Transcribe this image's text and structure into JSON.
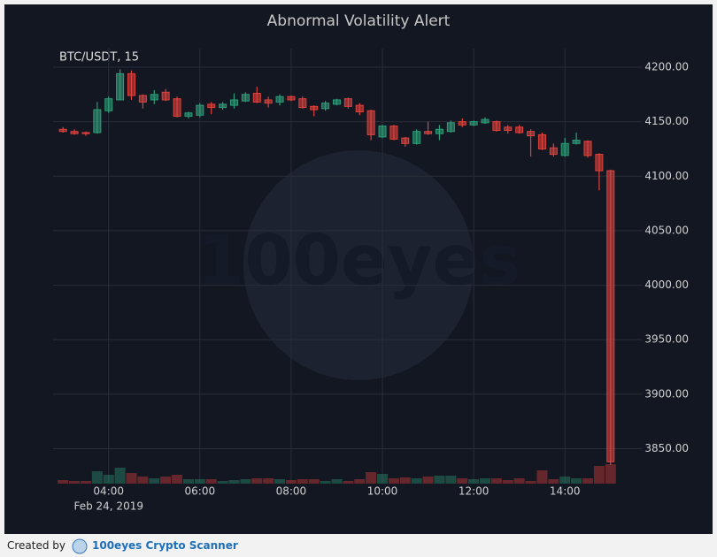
{
  "chart_data": {
    "type": "candlestick",
    "title": "Abnormal Volatility Alert",
    "symbol_label": "BTC/USDT, 15",
    "date_label": "Feb 24, 2019",
    "watermark": "100eyes",
    "x": [
      "03:00",
      "03:15",
      "03:30",
      "03:45",
      "04:00",
      "04:15",
      "04:30",
      "04:45",
      "05:00",
      "05:15",
      "05:30",
      "05:45",
      "06:00",
      "06:15",
      "06:30",
      "06:45",
      "07:00",
      "07:15",
      "07:30",
      "07:45",
      "08:00",
      "08:15",
      "08:30",
      "08:45",
      "09:00",
      "09:15",
      "09:30",
      "09:45",
      "10:00",
      "10:15",
      "10:30",
      "10:45",
      "11:00",
      "11:15",
      "11:30",
      "11:45",
      "12:00",
      "12:15",
      "12:30",
      "12:45",
      "13:00",
      "13:15",
      "13:30",
      "13:45",
      "14:00",
      "14:15",
      "14:30",
      "14:45",
      "15:00"
    ],
    "open": [
      4143,
      4141,
      4140,
      4140,
      4160,
      4170,
      4194,
      4174,
      4170,
      4177,
      4171,
      4155,
      4156,
      4166,
      4163,
      4165,
      4169,
      4176,
      4170,
      4168,
      4173,
      4171,
      4164,
      4162,
      4166,
      4171,
      4165,
      4160,
      4136,
      4146,
      4135,
      4130,
      4141,
      4139,
      4141,
      4150,
      4147,
      4149,
      4150,
      4145,
      4145,
      4141,
      4138,
      4126,
      4119,
      4130,
      4132,
      4120,
      4105
    ],
    "high": [
      4145,
      4143,
      4141,
      4168,
      4173,
      4198,
      4197,
      4175,
      4179,
      4180,
      4173,
      4159,
      4167,
      4168,
      4168,
      4176,
      4177,
      4182,
      4173,
      4175,
      4174,
      4173,
      4165,
      4169,
      4171,
      4172,
      4167,
      4161,
      4147,
      4147,
      4136,
      4143,
      4150,
      4147,
      4151,
      4153,
      4151,
      4154,
      4151,
      4147,
      4147,
      4143,
      4140,
      4130,
      4135,
      4140,
      4133,
      4121,
      4106
    ],
    "low": [
      4140,
      4138,
      4137,
      4139,
      4158,
      4170,
      4170,
      4162,
      4166,
      4169,
      4154,
      4153,
      4154,
      4157,
      4161,
      4162,
      4168,
      4167,
      4163,
      4165,
      4169,
      4162,
      4155,
      4160,
      4165,
      4162,
      4156,
      4133,
      4135,
      4133,
      4127,
      4129,
      4138,
      4133,
      4140,
      4145,
      4146,
      4148,
      4141,
      4139,
      4139,
      4118,
      4124,
      4118,
      4118,
      4129,
      4117,
      4087,
      3835
    ],
    "close": [
      4141,
      4139,
      4139,
      4161,
      4171,
      4194,
      4174,
      4168,
      4175,
      4170,
      4155,
      4158,
      4165,
      4163,
      4166,
      4170,
      4175,
      4168,
      4167,
      4173,
      4170,
      4163,
      4161,
      4167,
      4170,
      4164,
      4159,
      4138,
      4146,
      4134,
      4130,
      4141,
      4139,
      4143,
      4149,
      4147,
      4150,
      4152,
      4142,
      4142,
      4140,
      4137,
      4125,
      4120,
      4130,
      4133,
      4119,
      4105,
      3838
    ],
    "volume": [
      4,
      3,
      3,
      14,
      10,
      18,
      12,
      8,
      6,
      8,
      10,
      5,
      5,
      5,
      3,
      4,
      5,
      6,
      6,
      5,
      4,
      5,
      5,
      3,
      5,
      3,
      5,
      13,
      11,
      6,
      7,
      6,
      8,
      9,
      9,
      6,
      5,
      6,
      6,
      4,
      6,
      3,
      15,
      5,
      8,
      6,
      6,
      20,
      22
    ],
    "up_color": "#2e9c78",
    "down_color": "#e0413c",
    "xlim": [
      "02:47",
      "15:41"
    ],
    "xticks": [
      "04:00",
      "06:00",
      "08:00",
      "10:00",
      "12:00",
      "14:00"
    ],
    "ylim": [
      3818,
      4217
    ],
    "yticks": [
      {
        "value": 3850,
        "label": "3850.00"
      },
      {
        "value": 3900,
        "label": "3900.00"
      },
      {
        "value": 3950,
        "label": "3950.00"
      },
      {
        "value": 4000,
        "label": "4000.00"
      },
      {
        "value": 4050,
        "label": "4050.00"
      },
      {
        "value": 4100,
        "label": "4100.00"
      },
      {
        "value": 4150,
        "label": "4150.00"
      },
      {
        "value": 4200,
        "label": "4200.00"
      }
    ],
    "grid": true
  },
  "footer": {
    "created_by": "Created by",
    "brand": "100eyes Crypto Scanner"
  }
}
